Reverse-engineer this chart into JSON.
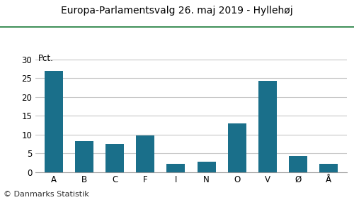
{
  "title": "Europa-Parlamentsvalg 26. maj 2019 - Hyllehøj",
  "categories": [
    "A",
    "B",
    "C",
    "F",
    "I",
    "N",
    "O",
    "V",
    "Ø",
    "Å"
  ],
  "values": [
    27.0,
    8.2,
    7.5,
    9.8,
    2.2,
    2.8,
    13.0,
    24.3,
    4.2,
    2.2
  ],
  "bar_color": "#1a6f8a",
  "pct_label": "Pct.",
  "ylim": [
    0,
    32
  ],
  "yticks": [
    0,
    5,
    10,
    15,
    20,
    25,
    30
  ],
  "footer": "© Danmarks Statistik",
  "title_fontsize": 10,
  "tick_fontsize": 8.5,
  "footer_fontsize": 8,
  "background_color": "#ffffff",
  "title_color": "#000000",
  "grid_color": "#c8c8c8",
  "top_line_color": "#1a7a3a"
}
